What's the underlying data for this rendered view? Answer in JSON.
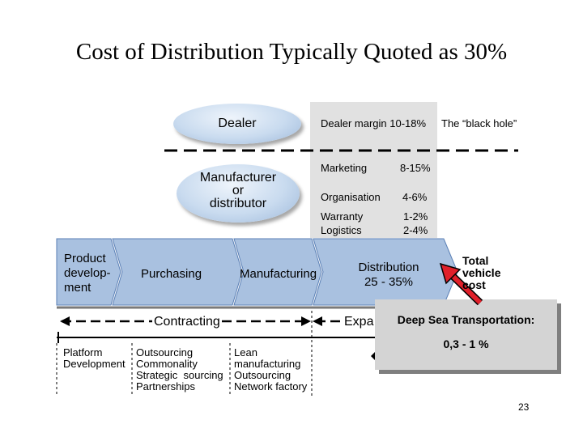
{
  "title": "Cost of Distribution Typically Quoted as 30%",
  "dealer": {
    "label": "Dealer",
    "margin_text": "Dealer margin 10-18%",
    "black_hole": "The “black hole”"
  },
  "manufacturer": {
    "line1": "Manufacturer",
    "line2": "or",
    "line3": "distributor"
  },
  "costs": [
    {
      "label": "Marketing",
      "value": "8-15%"
    },
    {
      "label": "Organisation",
      "value": "4-6%"
    },
    {
      "label": "Warranty",
      "value": "1-2%"
    },
    {
      "label": "Logistics",
      "value": "2-4%"
    }
  ],
  "chain": {
    "product_line1": "Product",
    "product_line2": "develop-",
    "product_line3": "ment",
    "purchasing": "Purchasing",
    "manufacturing": "Manufacturing",
    "distribution_line1": "Distribution",
    "distribution_line2": "25 - 35%"
  },
  "total": {
    "line1": "Total",
    "line2": "vehicle",
    "line3": "cost"
  },
  "timeline": {
    "contracting": "Contracting",
    "expa": "Expa"
  },
  "notes": {
    "col1": [
      "Platform",
      "Development"
    ],
    "col2": [
      "Outsourcing",
      "Commonality",
      "Strategic  sourcing",
      "Partnerships"
    ],
    "col3": [
      "Lean",
      "manufacturing",
      "Outsourcing",
      "Network factory"
    ]
  },
  "overlay": {
    "title": "Deep Sea Transportation:",
    "value": "0,3 - 1 %"
  },
  "page_number": "23",
  "colors": {
    "chevron": "#a9c1e0",
    "chevron_edge": "#5a7fb5",
    "ellipse": "#c9dbef",
    "cost_column": "#e1e1e1",
    "overlay": "#d4d4d4",
    "arrow": "#e0202a"
  }
}
